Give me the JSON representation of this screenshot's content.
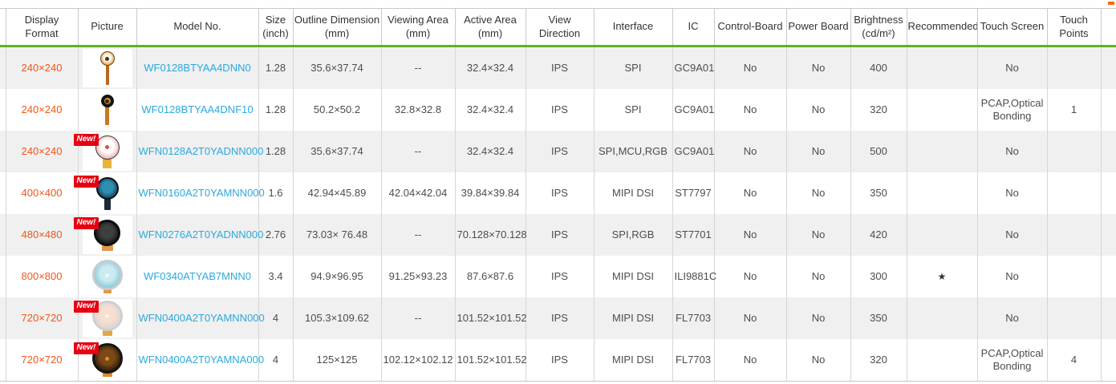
{
  "colors": {
    "accent_green": "#5fb321",
    "link_blue": "#2aa9df",
    "format_orange": "#f25618",
    "badge_red": "#e60012",
    "row_alt_gray": "#f0f0f0",
    "border_gray": "#cccccc",
    "header_text": "#333333"
  },
  "new_badge_label": "New!",
  "table": {
    "columns": [
      {
        "id": "display_format",
        "label": "Display Format",
        "unit": ""
      },
      {
        "id": "picture",
        "label": "Picture",
        "unit": ""
      },
      {
        "id": "model_no",
        "label": "Model No.",
        "unit": ""
      },
      {
        "id": "size",
        "label": "Size",
        "unit": "(inch)"
      },
      {
        "id": "outline",
        "label": "Outline Dimension",
        "unit": "(mm)"
      },
      {
        "id": "viewing",
        "label": "Viewing Area",
        "unit": "(mm)"
      },
      {
        "id": "active",
        "label": "Active Area",
        "unit": "(mm)"
      },
      {
        "id": "view_direction",
        "label": "View Direction",
        "unit": ""
      },
      {
        "id": "interface",
        "label": "Interface",
        "unit": ""
      },
      {
        "id": "ic",
        "label": "IC",
        "unit": ""
      },
      {
        "id": "control_board",
        "label": "Control-Board",
        "unit": ""
      },
      {
        "id": "power_board",
        "label": "Power Board",
        "unit": ""
      },
      {
        "id": "brightness",
        "label": "Brightness",
        "unit": "(cd/m²)"
      },
      {
        "id": "recommended",
        "label": "Recommended",
        "unit": ""
      },
      {
        "id": "touch_screen",
        "label": "Touch Screen",
        "unit": ""
      },
      {
        "id": "touch_points",
        "label": "Touch Points",
        "unit": ""
      }
    ],
    "rows": [
      {
        "display_format": "240×240",
        "new": false,
        "picture": {
          "icon": "round-display-lollipop",
          "d": 18,
          "ring": "#6b4a20",
          "ring_w": 1,
          "face": "#fdf6ea",
          "glow": "#e2902f",
          "dot": "#4a3214",
          "stem": "#b5691f",
          "stem_w": 4,
          "stem_h": 25
        },
        "model_no": "WF0128BTYAA4DNN0",
        "size": "1.28",
        "outline": "35.6×37.74",
        "viewing": "--",
        "active": "32.4×32.4",
        "view_direction": "IPS",
        "interface": "SPI",
        "ic": "GC9A01",
        "control_board": "No",
        "power_board": "No",
        "brightness": "400",
        "recommended": "",
        "touch_screen": "No",
        "touch_points": ""
      },
      {
        "display_format": "240×240",
        "new": false,
        "picture": {
          "icon": "round-display-lollipop",
          "d": 16,
          "ring": "#141414",
          "ring_w": 4,
          "face": "#e09a3a",
          "glow": "#c97820",
          "dot": "#3a2a12",
          "stem": "#c9791f",
          "stem_w": 5,
          "stem_h": 23
        },
        "model_no": "WF0128BTYAA4DNF10",
        "size": "1.28",
        "outline": "50.2×50.2",
        "viewing": "32.8×32.8",
        "active": "32.4×32.4",
        "view_direction": "IPS",
        "interface": "SPI",
        "ic": "GC9A01",
        "control_board": "No",
        "power_board": "No",
        "brightness": "320",
        "recommended": "",
        "touch_screen": "PCAP,Optical Bonding",
        "touch_points": "1"
      },
      {
        "display_format": "240×240",
        "new": true,
        "picture": {
          "icon": "round-display-watchface",
          "d": 30,
          "ring": "#3a3a3a",
          "ring_w": 1,
          "face": "#ffffff",
          "glow": "#efa8a0",
          "dot": "#d94f3f",
          "stem": "#e6b33c",
          "stem_w": 11,
          "stem_h": 12
        },
        "model_no": "WFN0128A2T0YADNN000",
        "size": "1.28",
        "outline": "35.6×37.74",
        "viewing": "--",
        "active": "32.4×32.4",
        "view_direction": "IPS",
        "interface": "SPI,MCU,RGB",
        "ic": "GC9A01",
        "control_board": "No",
        "power_board": "No",
        "brightness": "500",
        "recommended": "",
        "touch_screen": "No",
        "touch_points": ""
      },
      {
        "display_format": "400×400",
        "new": true,
        "picture": {
          "icon": "round-display-scene",
          "d": 28,
          "ring": "#101010",
          "ring_w": 2,
          "face": "#2e8fb0",
          "glow": "#123a52",
          "dot": "",
          "stem": "#1c2a38",
          "stem_w": 8,
          "stem_h": 14
        },
        "model_no": "WFN0160A2T0YAMNN000",
        "size": "1.6",
        "outline": "42.94×45.89",
        "viewing": "42.04×42.04",
        "active": "39.84×39.84",
        "view_direction": "IPS",
        "interface": "MIPI DSI",
        "ic": "ST7797",
        "control_board": "No",
        "power_board": "No",
        "brightness": "350",
        "recommended": "",
        "touch_screen": "No",
        "touch_points": ""
      },
      {
        "display_format": "480×480",
        "new": true,
        "picture": {
          "icon": "round-display-clock",
          "d": 33,
          "ring": "#0d0d0d",
          "ring_w": 3,
          "face": "#3f3f3f",
          "glow": "#141414",
          "dot": "",
          "stem": "#e2974a",
          "stem_w": 14,
          "stem_h": 7
        },
        "model_no": "WFN0276A2T0YADNN000",
        "size": "2.76",
        "outline": "73.03× 76.48",
        "viewing": "--",
        "active": "70.128×70.128",
        "view_direction": "IPS",
        "interface": "SPI,RGB",
        "ic": "ST7701",
        "control_board": "No",
        "power_board": "No",
        "brightness": "420",
        "recommended": "",
        "touch_screen": "No",
        "touch_points": ""
      },
      {
        "display_format": "800×800",
        "new": false,
        "picture": {
          "icon": "round-display-watchface",
          "d": 38,
          "ring": "#c6cbd0",
          "ring_w": 3,
          "face": "#cdeaf1",
          "glow": "#7ec6d6",
          "dot": "#eaf6f8",
          "stem": "#e09a42",
          "stem_w": 10,
          "stem_h": 5
        },
        "model_no": "WF0340ATYAB7MNN0",
        "size": "3.4",
        "outline": "94.9×96.95",
        "viewing": "91.25×93.23",
        "active": "87.6×87.6",
        "view_direction": "IPS",
        "interface": "MIPI DSI",
        "ic": "ILI9881C",
        "control_board": "No",
        "power_board": "No",
        "brightness": "300",
        "recommended": "★",
        "touch_screen": "No",
        "touch_points": ""
      },
      {
        "display_format": "720×720",
        "new": true,
        "picture": {
          "icon": "round-display-glow",
          "d": 38,
          "ring": "#cfcfd1",
          "ring_w": 3,
          "face": "#f6ded0",
          "glow": "#d9d5d4",
          "dot": "#fff3e4",
          "stem": "#e8a545",
          "stem_w": 12,
          "stem_h": 7
        },
        "model_no": "WFN0400A2T0YAMNN000",
        "size": "4",
        "outline": "105.3×109.62",
        "viewing": "--",
        "active": "101.52×101.52",
        "view_direction": "IPS",
        "interface": "MIPI DSI",
        "ic": "FL7703",
        "control_board": "No",
        "power_board": "No",
        "brightness": "350",
        "recommended": "",
        "touch_screen": "No",
        "touch_points": ""
      },
      {
        "display_format": "720×720",
        "new": true,
        "picture": {
          "icon": "round-display-scene",
          "d": 38,
          "ring": "#141414",
          "ring_w": 3,
          "face": "#7a4a16",
          "glow": "#1f1408",
          "dot": "#d98d2a",
          "stem": "#d98d2a",
          "stem_w": 12,
          "stem_h": 5
        },
        "model_no": "WFN0400A2T0YAMNA000",
        "size": "4",
        "outline": "125×125",
        "viewing": "102.12×102.12",
        "active": "101.52×101.52",
        "view_direction": "IPS",
        "interface": "MIPI DSI",
        "ic": "FL7703",
        "control_board": "No",
        "power_board": "No",
        "brightness": "320",
        "recommended": "",
        "touch_screen": "PCAP,Optical Bonding",
        "touch_points": "4"
      }
    ]
  }
}
